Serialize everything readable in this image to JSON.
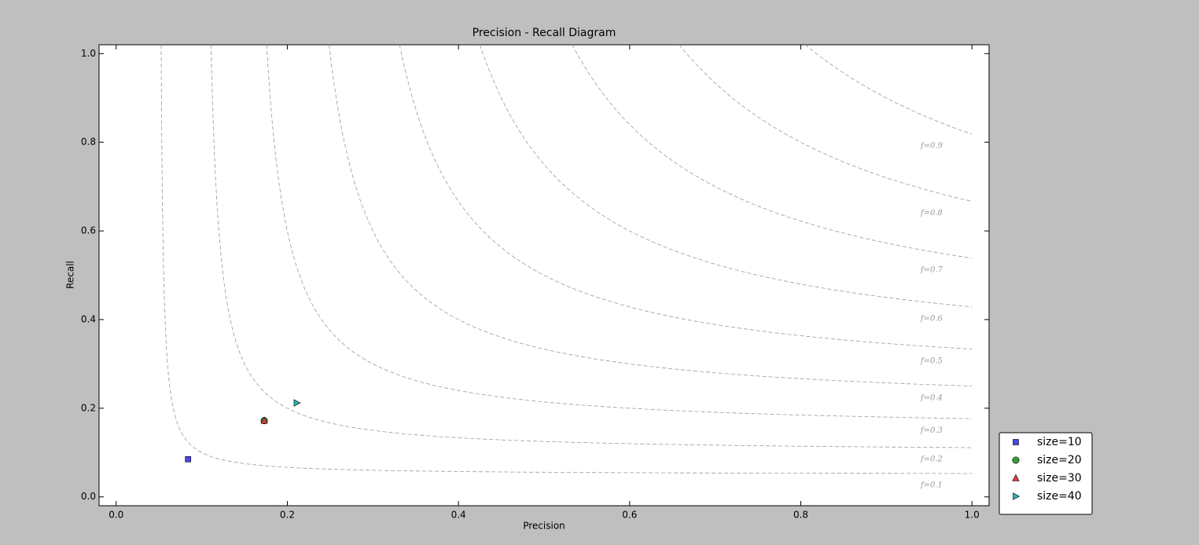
{
  "chart_data": {
    "type": "scatter",
    "title": "Precision - Recall Diagram",
    "x_label": "Precision",
    "y_label": "Recall",
    "xlim": [
      -0.02,
      1.02
    ],
    "ylim": [
      -0.02,
      1.02
    ],
    "xticks": [
      {
        "value": 0,
        "label": "0.0"
      },
      0.2,
      0.4,
      0.6,
      0.8,
      {
        "value": 1,
        "label": "1.0"
      }
    ],
    "yticks": [
      {
        "value": 0,
        "label": "0.0"
      },
      0.2,
      0.4,
      0.6,
      0.8,
      {
        "value": 1,
        "label": "1.0"
      }
    ],
    "iso_f": [
      0.1,
      0.2,
      0.3,
      0.4,
      0.5,
      0.6,
      0.7,
      0.8,
      0.9
    ],
    "iso_f_labels": [
      "f=0.1",
      "f=0.2",
      "f=0.3",
      "f=0.4",
      "f=0.5",
      "f=0.6",
      "f=0.7",
      "f=0.8",
      "f=0.9"
    ],
    "legend": "outside lower right",
    "series": [
      {
        "name": "size=10",
        "color": "#4848e0",
        "marker": "square",
        "x": [
          0.084
        ],
        "values": [
          0.085
        ]
      },
      {
        "name": "size=20",
        "color": "#3a9a3a",
        "marker": "circle",
        "x": [
          0.173
        ],
        "values": [
          0.172
        ]
      },
      {
        "name": "size=30",
        "color": "#d84040",
        "marker": "triangle-up",
        "x": [
          0.173
        ],
        "values": [
          0.172
        ]
      },
      {
        "name": "size=40",
        "color": "#30b0b0",
        "marker": "triangle-right",
        "x": [
          0.211
        ],
        "values": [
          0.212
        ]
      }
    ]
  }
}
